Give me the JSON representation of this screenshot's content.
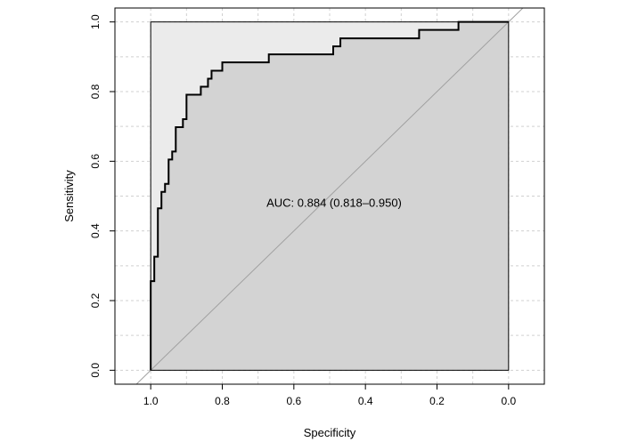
{
  "chart_data": {
    "type": "line",
    "title": "",
    "xlabel": "Specificity",
    "ylabel": "Sensitivity",
    "x_reversed": true,
    "xlim": [
      1.1,
      -0.1
    ],
    "ylim": [
      0,
      1
    ],
    "xticks": [
      1.0,
      0.8,
      0.6,
      0.4,
      0.2,
      0.0
    ],
    "xtick_labels": [
      "1.0",
      "0.8",
      "0.6",
      "0.4",
      "0.2",
      "0.0"
    ],
    "yticks": [
      0.0,
      0.2,
      0.4,
      0.6,
      0.8,
      1.0
    ],
    "ytick_labels": [
      "0.0",
      "0.2",
      "0.4",
      "0.6",
      "0.8",
      "1.0"
    ],
    "grid": true,
    "annotation": {
      "text": "AUC: 0.884 (0.818–0.950)",
      "x": 0.5,
      "y": 0.48
    },
    "series": [
      {
        "values_note": "ROC curve points (specificity, sensitivity)",
        "points": [
          [
            1.0,
            0.0
          ],
          [
            1.0,
            0.256
          ],
          [
            0.99,
            0.256
          ],
          [
            0.99,
            0.326
          ],
          [
            0.98,
            0.326
          ],
          [
            0.98,
            0.465
          ],
          [
            0.97,
            0.465
          ],
          [
            0.97,
            0.512
          ],
          [
            0.96,
            0.512
          ],
          [
            0.96,
            0.535
          ],
          [
            0.95,
            0.535
          ],
          [
            0.95,
            0.605
          ],
          [
            0.94,
            0.605
          ],
          [
            0.94,
            0.628
          ],
          [
            0.93,
            0.628
          ],
          [
            0.93,
            0.698
          ],
          [
            0.91,
            0.698
          ],
          [
            0.91,
            0.721
          ],
          [
            0.9,
            0.721
          ],
          [
            0.9,
            0.791
          ],
          [
            0.86,
            0.791
          ],
          [
            0.86,
            0.814
          ],
          [
            0.84,
            0.814
          ],
          [
            0.84,
            0.837
          ],
          [
            0.83,
            0.837
          ],
          [
            0.83,
            0.86
          ],
          [
            0.8,
            0.86
          ],
          [
            0.8,
            0.884
          ],
          [
            0.67,
            0.884
          ],
          [
            0.67,
            0.907
          ],
          [
            0.49,
            0.907
          ],
          [
            0.49,
            0.93
          ],
          [
            0.47,
            0.93
          ],
          [
            0.47,
            0.953
          ],
          [
            0.25,
            0.953
          ],
          [
            0.25,
            0.977
          ],
          [
            0.14,
            0.977
          ],
          [
            0.14,
            1.0
          ],
          [
            0.0,
            1.0
          ]
        ]
      }
    ],
    "colors": {
      "roc_line": "#000000",
      "fill_under": "#d3d3d3",
      "fill_box": "#ebebeb",
      "diagonal": "#a0a0a0",
      "grid": "#d0d0d0"
    }
  }
}
